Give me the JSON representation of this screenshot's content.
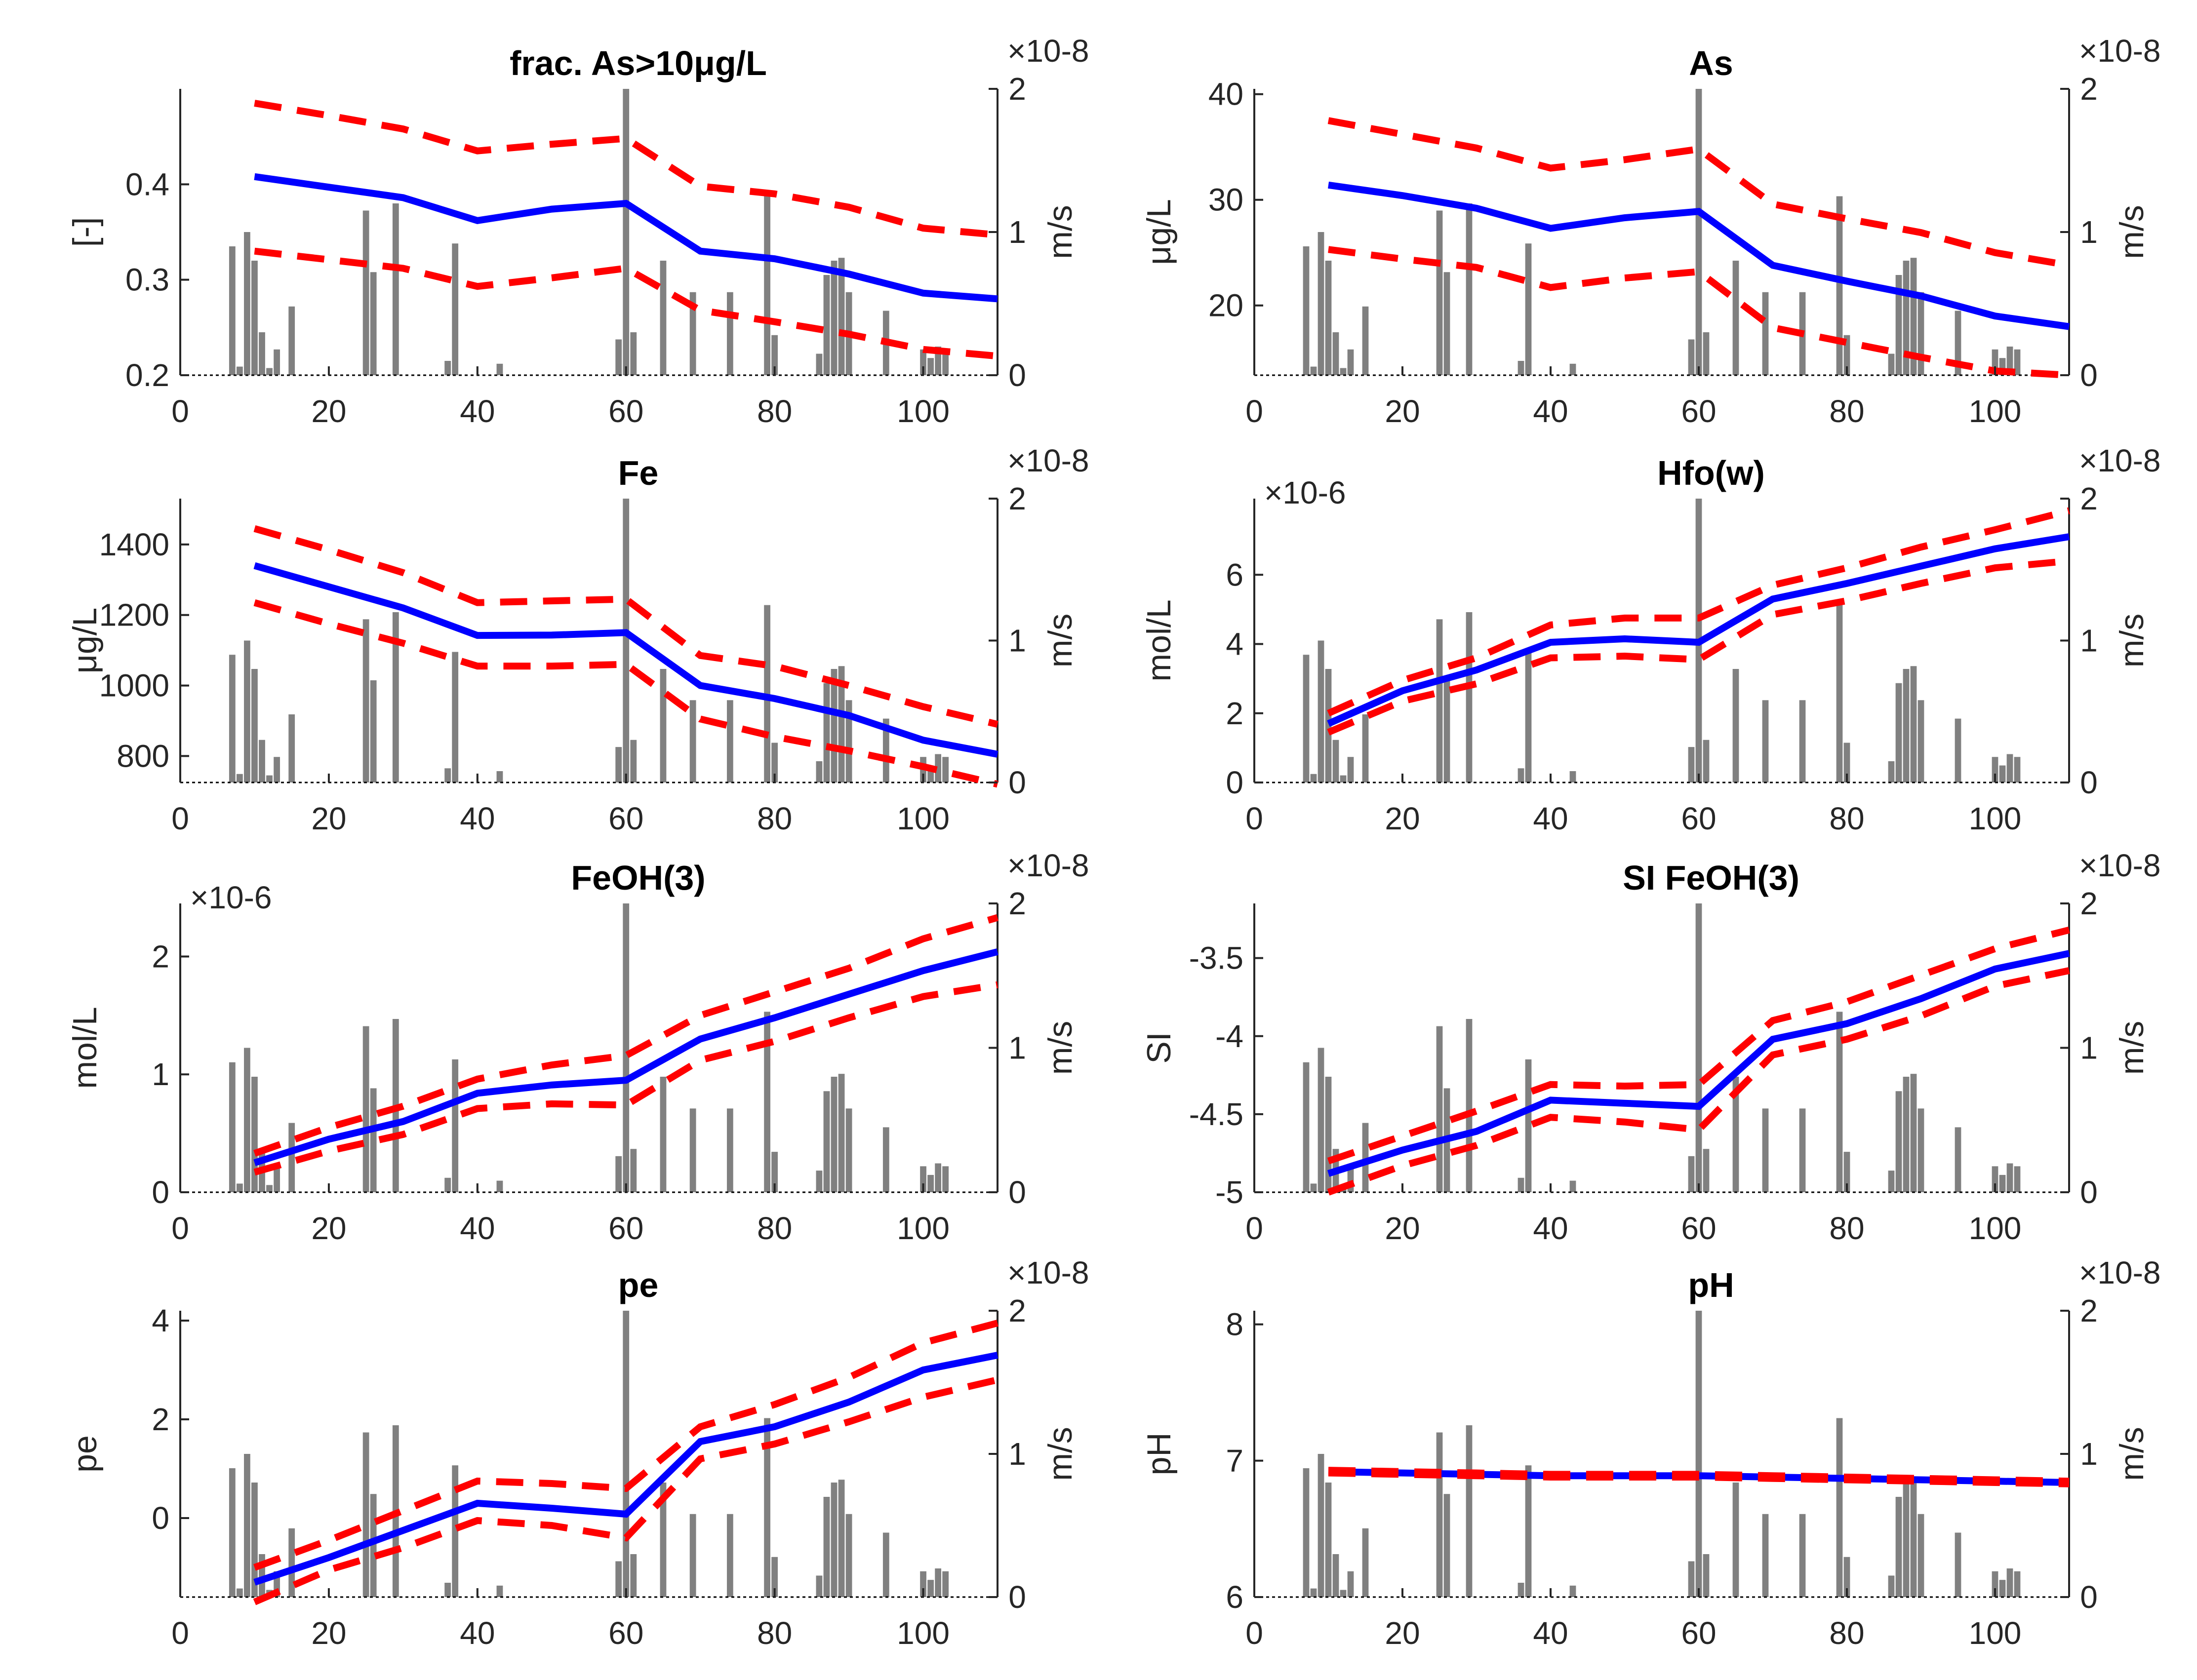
{
  "figure": {
    "colors": {
      "mean": "#0000ff",
      "bounds": "#ff0000",
      "bars": "#808080",
      "axes": "#262626"
    }
  },
  "chart_data": [
    {
      "type": "line",
      "title": "frac. As>10μg/L",
      "ylabel": "[-]",
      "ylim": [
        0.2,
        0.5
      ],
      "yticks": [
        0.2,
        0.3,
        0.4
      ],
      "yticklabels": [
        "0.2",
        "0.3",
        "0.4"
      ],
      "yexponent": "",
      "xlim": [
        0,
        110
      ],
      "xticks": [
        0,
        20,
        40,
        60,
        80,
        100
      ],
      "xticklabels": [
        "0",
        "20",
        "40",
        "60",
        "80",
        "100"
      ],
      "y2label": "m/s",
      "y2lim": [
        0,
        2e-08
      ],
      "y2ticklabels": [
        "0",
        "1",
        "2"
      ],
      "y2exponent": "×10-8",
      "x": [
        10,
        20,
        30,
        40,
        50,
        60,
        70,
        80,
        90,
        100,
        110
      ],
      "series": [
        {
          "role": "mean",
          "values": [
            0.408,
            0.397,
            0.386,
            0.362,
            0.374,
            0.38,
            0.33,
            0.322,
            0.306,
            0.286,
            0.28
          ]
        },
        {
          "role": "upper",
          "values": [
            0.485,
            0.472,
            0.458,
            0.435,
            0.442,
            0.448,
            0.398,
            0.39,
            0.376,
            0.354,
            0.347
          ]
        },
        {
          "role": "lower",
          "values": [
            0.33,
            0.321,
            0.312,
            0.293,
            0.302,
            0.312,
            0.268,
            0.256,
            0.243,
            0.227,
            0.22
          ]
        }
      ]
    },
    {
      "type": "line",
      "title": "As",
      "ylabel": "μg/L",
      "ylim": [
        13.4,
        40.5
      ],
      "yticks": [
        20,
        30,
        40
      ],
      "yticklabels": [
        "20",
        "30",
        "40"
      ],
      "yexponent": "",
      "xlim": [
        0,
        110
      ],
      "xticks": [
        0,
        20,
        40,
        60,
        80,
        100
      ],
      "xticklabels": [
        "0",
        "20",
        "40",
        "60",
        "80",
        "100"
      ],
      "y2label": "m/s",
      "y2lim": [
        0,
        2e-08
      ],
      "y2ticklabels": [
        "0",
        "1",
        "2"
      ],
      "y2exponent": "×10-8",
      "x": [
        10,
        20,
        30,
        40,
        50,
        60,
        70,
        80,
        90,
        100,
        110
      ],
      "series": [
        {
          "role": "mean",
          "values": [
            31.4,
            30.4,
            29.2,
            27.3,
            28.3,
            28.9,
            23.8,
            22.3,
            20.9,
            19.0,
            18.0
          ]
        },
        {
          "role": "upper",
          "values": [
            37.5,
            36.2,
            34.9,
            33.0,
            33.8,
            34.8,
            29.6,
            28.2,
            26.9,
            25.0,
            23.8
          ]
        },
        {
          "role": "lower",
          "values": [
            25.3,
            24.4,
            23.6,
            21.7,
            22.6,
            23.2,
            17.9,
            16.5,
            15.1,
            13.8,
            13.4
          ]
        }
      ]
    },
    {
      "type": "line",
      "title": "Fe",
      "ylabel": "μg/L",
      "ylim": [
        725,
        1530
      ],
      "yticks": [
        800,
        1000,
        1200,
        1400
      ],
      "yticklabels": [
        "800",
        "1000",
        "1200",
        "1400"
      ],
      "yexponent": "",
      "xlim": [
        0,
        110
      ],
      "xticks": [
        0,
        20,
        40,
        60,
        80,
        100
      ],
      "xticklabels": [
        "0",
        "20",
        "40",
        "60",
        "80",
        "100"
      ],
      "y2label": "m/s",
      "y2lim": [
        0,
        2e-08
      ],
      "y2ticklabels": [
        "0",
        "1",
        "2"
      ],
      "y2exponent": "×10-8",
      "x": [
        10,
        20,
        30,
        40,
        50,
        60,
        70,
        80,
        90,
        100,
        110
      ],
      "series": [
        {
          "role": "mean",
          "values": [
            1340,
            1280,
            1220,
            1142,
            1143,
            1150,
            1000,
            963,
            915,
            845,
            805
          ]
        },
        {
          "role": "upper",
          "values": [
            1445,
            1385,
            1320,
            1235,
            1240,
            1245,
            1085,
            1055,
            1000,
            940,
            890
          ]
        },
        {
          "role": "lower",
          "values": [
            1235,
            1175,
            1120,
            1055,
            1055,
            1060,
            905,
            855,
            815,
            770,
            720
          ]
        }
      ]
    },
    {
      "type": "line",
      "title": "Hfo(w)",
      "ylabel": "mol/L",
      "ylim": [
        0,
        8.2e-06
      ],
      "yticks": [
        0,
        2e-06,
        4e-06,
        6e-06
      ],
      "yticklabels": [
        "0",
        "2",
        "4",
        "6"
      ],
      "yexponent": "×10-6",
      "xlim": [
        0,
        110
      ],
      "xticks": [
        0,
        20,
        40,
        60,
        80,
        100
      ],
      "xticklabels": [
        "0",
        "20",
        "40",
        "60",
        "80",
        "100"
      ],
      "y2label": "m/s",
      "y2lim": [
        0,
        2e-08
      ],
      "y2ticklabels": [
        "0",
        "1",
        "2"
      ],
      "y2exponent": "×10-8",
      "x": [
        10,
        20,
        30,
        40,
        50,
        60,
        70,
        80,
        90,
        100,
        110
      ],
      "series": [
        {
          "role": "mean",
          "values": [
            1.7e-06,
            2.65e-06,
            3.25e-06,
            4.05e-06,
            4.15e-06,
            4.05e-06,
            5.3e-06,
            5.75e-06,
            6.25e-06,
            6.75e-06,
            7.1e-06
          ]
        },
        {
          "role": "upper",
          "values": [
            2e-06,
            2.95e-06,
            3.6e-06,
            4.55e-06,
            4.75e-06,
            4.75e-06,
            5.7e-06,
            6.2e-06,
            6.8e-06,
            7.3e-06,
            7.85e-06
          ]
        },
        {
          "role": "lower",
          "values": [
            1.45e-06,
            2.35e-06,
            2.85e-06,
            3.6e-06,
            3.65e-06,
            3.55e-06,
            4.85e-06,
            5.25e-06,
            5.75e-06,
            6.2e-06,
            6.4e-06
          ]
        }
      ]
    },
    {
      "type": "line",
      "title": "FeOH(3)",
      "ylabel": "mol/L",
      "ylim": [
        0,
        2.45e-06
      ],
      "yticks": [
        0,
        1e-06,
        2e-06
      ],
      "yticklabels": [
        "0",
        "1",
        "2"
      ],
      "yexponent": "×10-6",
      "xlim": [
        0,
        110
      ],
      "xticks": [
        0,
        20,
        40,
        60,
        80,
        100
      ],
      "xticklabels": [
        "0",
        "20",
        "40",
        "60",
        "80",
        "100"
      ],
      "y2label": "m/s",
      "y2lim": [
        0,
        2e-08
      ],
      "y2ticklabels": [
        "0",
        "1",
        "2"
      ],
      "y2exponent": "×10-8",
      "x": [
        10,
        20,
        30,
        40,
        50,
        60,
        70,
        80,
        90,
        100,
        110
      ],
      "series": [
        {
          "role": "mean",
          "values": [
            2.5e-07,
            4.5e-07,
            6e-07,
            8.4e-07,
            9.1e-07,
            9.5e-07,
            1.3e-06,
            1.48e-06,
            1.68e-06,
            1.88e-06,
            2.04e-06
          ]
        },
        {
          "role": "upper",
          "values": [
            3.3e-07,
            5.5e-07,
            7.3e-07,
            9.6e-07,
            1.08e-06,
            1.16e-06,
            1.5e-06,
            1.7e-06,
            1.9e-06,
            2.15e-06,
            2.33e-06
          ]
        },
        {
          "role": "lower",
          "values": [
            1.7e-07,
            3.5e-07,
            4.9e-07,
            7.1e-07,
            7.5e-07,
            7.4e-07,
            1.12e-06,
            1.28e-06,
            1.48e-06,
            1.66e-06,
            1.76e-06
          ]
        }
      ]
    },
    {
      "type": "line",
      "title": "SI FeOH(3)",
      "ylabel": "SI",
      "ylim": [
        -5,
        -3.15
      ],
      "yticks": [
        -5,
        -4.5,
        -4,
        -3.5
      ],
      "yticklabels": [
        "-5",
        "-4.5",
        "-4",
        "-3.5"
      ],
      "yexponent": "",
      "xlim": [
        0,
        110
      ],
      "xticks": [
        0,
        20,
        40,
        60,
        80,
        100
      ],
      "xticklabels": [
        "0",
        "20",
        "40",
        "60",
        "80",
        "100"
      ],
      "y2label": "m/s",
      "y2lim": [
        0,
        2e-08
      ],
      "y2ticklabels": [
        "0",
        "1",
        "2"
      ],
      "y2exponent": "×10-8",
      "x": [
        10,
        20,
        30,
        40,
        50,
        60,
        70,
        80,
        90,
        100,
        110
      ],
      "series": [
        {
          "role": "mean",
          "values": [
            -4.88,
            -4.73,
            -4.61,
            -4.41,
            -4.43,
            -4.45,
            -4.02,
            -3.92,
            -3.76,
            -3.57,
            -3.47
          ]
        },
        {
          "role": "upper",
          "values": [
            -4.8,
            -4.64,
            -4.48,
            -4.31,
            -4.32,
            -4.31,
            -3.9,
            -3.78,
            -3.61,
            -3.44,
            -3.32
          ]
        },
        {
          "role": "lower",
          "values": [
            -5.0,
            -4.83,
            -4.7,
            -4.52,
            -4.55,
            -4.6,
            -4.12,
            -4.02,
            -3.87,
            -3.68,
            -3.58
          ]
        }
      ]
    },
    {
      "type": "line",
      "title": "pe",
      "ylabel": "pe",
      "ylim": [
        -1.6,
        4.2
      ],
      "yticks": [
        0,
        2,
        4
      ],
      "yticklabels": [
        "0",
        "2",
        "4"
      ],
      "yexponent": "",
      "xlim": [
        0,
        110
      ],
      "xticks": [
        0,
        20,
        40,
        60,
        80,
        100
      ],
      "xticklabels": [
        "0",
        "20",
        "40",
        "60",
        "80",
        "100"
      ],
      "y2label": "m/s",
      "y2lim": [
        0,
        2e-08
      ],
      "y2ticklabels": [
        "0",
        "1",
        "2"
      ],
      "y2exponent": "×10-8",
      "x": [
        10,
        20,
        30,
        40,
        50,
        60,
        70,
        80,
        90,
        100,
        110
      ],
      "series": [
        {
          "role": "mean",
          "values": [
            -1.3,
            -0.8,
            -0.25,
            0.3,
            0.2,
            0.08,
            1.55,
            1.85,
            2.35,
            3.0,
            3.3
          ]
        },
        {
          "role": "upper",
          "values": [
            -1.0,
            -0.45,
            0.15,
            0.75,
            0.7,
            0.6,
            1.85,
            2.3,
            2.85,
            3.55,
            3.95
          ]
        },
        {
          "role": "lower",
          "values": [
            -1.7,
            -1.05,
            -0.6,
            -0.05,
            -0.15,
            -0.4,
            1.2,
            1.5,
            1.95,
            2.45,
            2.8
          ]
        }
      ]
    },
    {
      "type": "line",
      "title": "pH",
      "ylabel": "pH",
      "ylim": [
        6,
        8.1
      ],
      "yticks": [
        6,
        7,
        8
      ],
      "yticklabels": [
        "6",
        "7",
        "8"
      ],
      "yexponent": "",
      "xlim": [
        0,
        110
      ],
      "xticks": [
        0,
        20,
        40,
        60,
        80,
        100
      ],
      "xticklabels": [
        "0",
        "20",
        "40",
        "60",
        "80",
        "100"
      ],
      "y2label": "m/s",
      "y2lim": [
        0,
        2e-08
      ],
      "y2ticklabels": [
        "0",
        "1",
        "2"
      ],
      "y2exponent": "×10-8",
      "x": [
        10,
        20,
        30,
        40,
        50,
        60,
        70,
        80,
        90,
        100,
        110
      ],
      "series": [
        {
          "role": "mean",
          "values": [
            6.92,
            6.91,
            6.9,
            6.89,
            6.89,
            6.89,
            6.88,
            6.87,
            6.86,
            6.85,
            6.84
          ]
        },
        {
          "role": "upper",
          "values": [
            6.93,
            6.92,
            6.91,
            6.9,
            6.9,
            6.9,
            6.89,
            6.88,
            6.87,
            6.86,
            6.85
          ]
        },
        {
          "role": "lower",
          "values": [
            6.91,
            6.9,
            6.89,
            6.88,
            6.88,
            6.88,
            6.87,
            6.86,
            6.85,
            6.84,
            6.83
          ]
        }
      ]
    }
  ],
  "histogram": {
    "ylim": [
      0,
      2e-08
    ],
    "bars": [
      {
        "x": 7.0,
        "v": 9e-09
      },
      {
        "x": 8.0,
        "v": 6e-10
      },
      {
        "x": 9.0,
        "v": 1e-08
      },
      {
        "x": 10.0,
        "v": 8e-09
      },
      {
        "x": 11.0,
        "v": 3e-09
      },
      {
        "x": 12.0,
        "v": 5e-10
      },
      {
        "x": 13.0,
        "v": 1.8e-09
      },
      {
        "x": 15.0,
        "v": 4.8e-09
      },
      {
        "x": 25.0,
        "v": 1.15e-08
      },
      {
        "x": 26.0,
        "v": 7.2e-09
      },
      {
        "x": 29.0,
        "v": 1.2e-08
      },
      {
        "x": 36.0,
        "v": 1e-09
      },
      {
        "x": 37.0,
        "v": 9.2e-09
      },
      {
        "x": 43.0,
        "v": 8e-10
      },
      {
        "x": 59.0,
        "v": 2.5e-09
      },
      {
        "x": 60.0,
        "v": 2e-08
      },
      {
        "x": 61.0,
        "v": 3e-09
      },
      {
        "x": 65.0,
        "v": 8e-09
      },
      {
        "x": 69.0,
        "v": 5.8e-09
      },
      {
        "x": 74.0,
        "v": 5.8e-09
      },
      {
        "x": 79.0,
        "v": 1.25e-08
      },
      {
        "x": 80.0,
        "v": 2.8e-09
      },
      {
        "x": 86.0,
        "v": 1.5e-09
      },
      {
        "x": 87.0,
        "v": 7e-09
      },
      {
        "x": 88.0,
        "v": 8e-09
      },
      {
        "x": 89.0,
        "v": 8.2e-09
      },
      {
        "x": 90.0,
        "v": 5.8e-09
      },
      {
        "x": 95.0,
        "v": 4.5e-09
      },
      {
        "x": 100.0,
        "v": 1.8e-09
      },
      {
        "x": 101.0,
        "v": 1.2e-09
      },
      {
        "x": 102.0,
        "v": 2e-09
      },
      {
        "x": 103.0,
        "v": 1.8e-09
      }
    ]
  }
}
